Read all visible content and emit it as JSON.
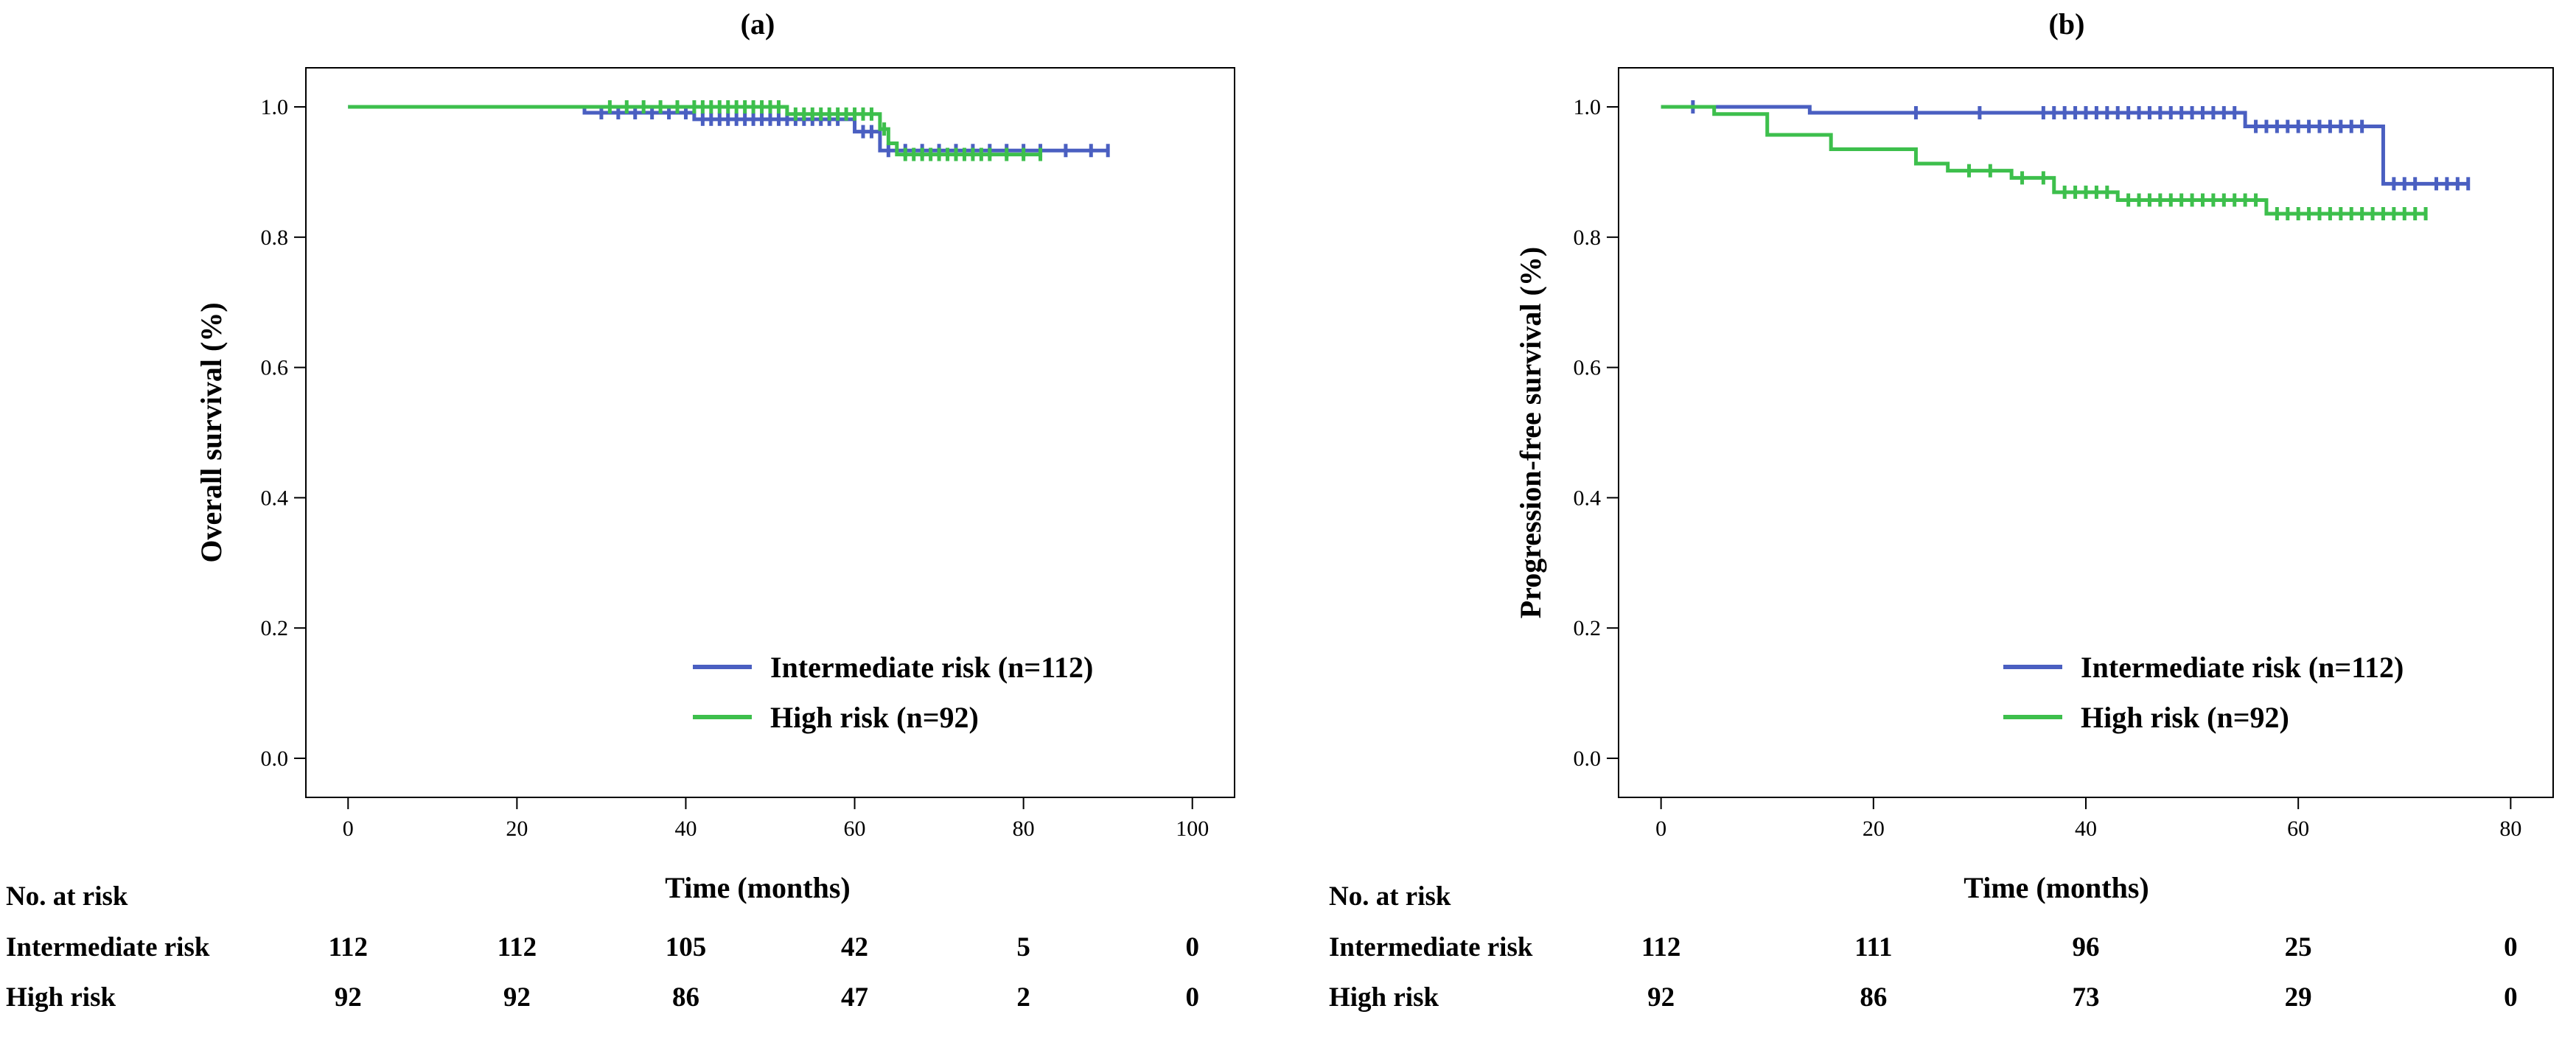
{
  "chart_data": [
    {
      "type": "line",
      "panel_label": "(a)",
      "title": "",
      "xlabel": "Time (months)",
      "ylabel": "Overall survival (%)",
      "xlim": [
        -5,
        105
      ],
      "ylim": [
        -0.06,
        1.06
      ],
      "xticks": [
        0,
        20,
        40,
        60,
        80,
        100
      ],
      "yticks": [
        0.0,
        0.2,
        0.4,
        0.6,
        0.8,
        1.0
      ],
      "xtick_labels": [
        "0",
        "20",
        "40",
        "60",
        "80",
        "100"
      ],
      "ytick_labels": [
        "0.0",
        "0.2",
        "0.4",
        "0.6",
        "0.8",
        "1.0"
      ],
      "legend_position": "bottom-right",
      "grid": false,
      "series": [
        {
          "name": "Intermediate risk (n=112)",
          "color": "#4a5fc1",
          "step_x": [
            0,
            28,
            41,
            60,
            63,
            90
          ],
          "step_y": [
            1.0,
            0.991,
            0.981,
            0.962,
            0.933,
            0.933
          ],
          "censor_x": [
            30,
            32,
            34,
            36,
            38,
            40,
            42,
            43,
            44,
            45,
            46,
            47,
            48,
            49,
            50,
            51,
            52,
            53,
            54,
            55,
            56,
            57,
            58,
            61,
            62,
            64,
            66,
            68,
            70,
            72,
            74,
            76,
            78,
            80,
            82,
            85,
            88,
            90
          ]
        },
        {
          "name": "High risk (n=92)",
          "color": "#3dbf4c",
          "step_x": [
            0,
            52,
            63,
            64,
            65,
            82
          ],
          "step_y": [
            1.0,
            0.989,
            0.966,
            0.944,
            0.927,
            0.927
          ],
          "censor_x": [
            31,
            33,
            35,
            37,
            39,
            41,
            42,
            43,
            44,
            45,
            46,
            47,
            48,
            49,
            50,
            51,
            53,
            54,
            55,
            56,
            57,
            58,
            59,
            60,
            61,
            62,
            63.5,
            66,
            67,
            68,
            69,
            70,
            71,
            72,
            73,
            74,
            75,
            76,
            78,
            80,
            82
          ]
        }
      ],
      "risk_table": {
        "header": "No. at risk",
        "times": [
          0,
          20,
          40,
          60,
          80,
          100
        ],
        "rows": [
          {
            "label": "Intermediate risk",
            "values": [
              "112",
              "112",
              "105",
              "42",
              "5",
              "0"
            ]
          },
          {
            "label": "High risk",
            "values": [
              "92",
              "92",
              "86",
              "47",
              "2",
              "0"
            ]
          }
        ]
      }
    },
    {
      "type": "line",
      "panel_label": "(b)",
      "title": "",
      "xlabel": "Time (months)",
      "ylabel": "Progression-free survival (%)",
      "xlim": [
        -4,
        84
      ],
      "ylim": [
        -0.06,
        1.06
      ],
      "xticks": [
        0,
        20,
        40,
        60,
        80
      ],
      "yticks": [
        0.0,
        0.2,
        0.4,
        0.6,
        0.8,
        1.0
      ],
      "xtick_labels": [
        "0",
        "20",
        "40",
        "60",
        "80"
      ],
      "ytick_labels": [
        "0.0",
        "0.2",
        "0.4",
        "0.6",
        "0.8",
        "1.0"
      ],
      "legend_position": "bottom-right",
      "grid": false,
      "series": [
        {
          "name": "Intermediate risk (n=112)",
          "color": "#4a5fc1",
          "step_x": [
            0,
            14,
            55,
            68,
            76
          ],
          "step_y": [
            1.0,
            0.991,
            0.97,
            0.882,
            0.882
          ],
          "censor_x": [
            3,
            24,
            30,
            36,
            37,
            38,
            39,
            40,
            41,
            42,
            43,
            44,
            45,
            46,
            47,
            48,
            49,
            50,
            51,
            52,
            53,
            54,
            56,
            57,
            58,
            59,
            60,
            61,
            62,
            63,
            64,
            65,
            66,
            69,
            70,
            71,
            73,
            74,
            75,
            76
          ]
        },
        {
          "name": "High risk (n=92)",
          "color": "#3dbf4c",
          "step_x": [
            0,
            5,
            10,
            16,
            24,
            27,
            33,
            37,
            43,
            57,
            72
          ],
          "step_y": [
            1.0,
            0.989,
            0.957,
            0.935,
            0.913,
            0.902,
            0.891,
            0.869,
            0.857,
            0.836,
            0.836
          ],
          "censor_x": [
            29,
            31,
            34,
            36,
            38,
            39,
            40,
            41,
            42,
            44,
            45,
            46,
            47,
            48,
            49,
            50,
            51,
            52,
            53,
            54,
            55,
            56,
            58,
            59,
            60,
            61,
            62,
            63,
            64,
            65,
            66,
            67,
            68,
            69,
            70,
            71,
            72
          ]
        }
      ],
      "risk_table": {
        "header": "No. at risk",
        "times": [
          0,
          20,
          40,
          60,
          80
        ],
        "rows": [
          {
            "label": "Intermediate risk",
            "values": [
              "112",
              "111",
              "96",
              "25",
              "0"
            ]
          },
          {
            "label": "High risk",
            "values": [
              "92",
              "86",
              "73",
              "29",
              "0"
            ]
          }
        ]
      }
    }
  ]
}
